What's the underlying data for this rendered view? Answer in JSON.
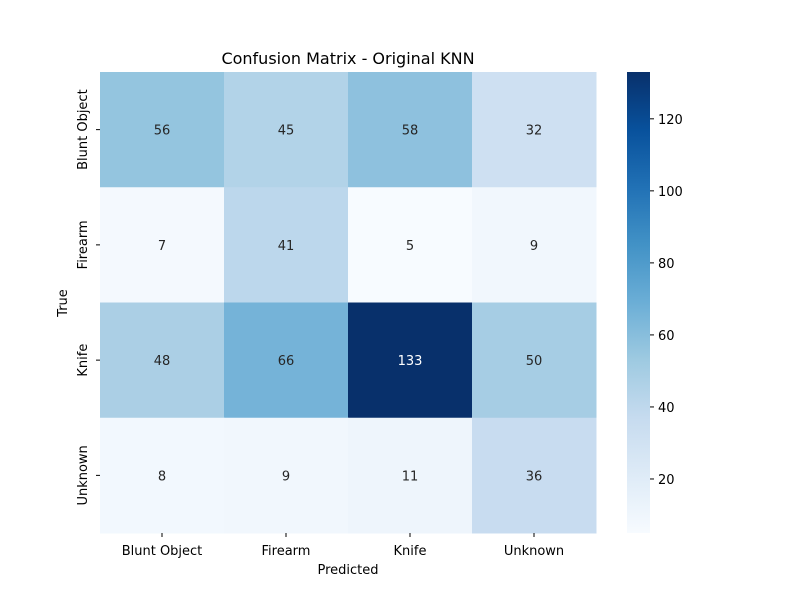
{
  "chart_data": {
    "type": "heatmap",
    "title": "Confusion Matrix - Original KNN",
    "xlabel": "Predicted",
    "ylabel": "True",
    "x_categories": [
      "Blunt Object",
      "Firearm",
      "Knife",
      "Unknown"
    ],
    "y_categories": [
      "Blunt Object",
      "Firearm",
      "Knife",
      "Unknown"
    ],
    "values": [
      [
        56,
        45,
        58,
        32
      ],
      [
        7,
        41,
        5,
        9
      ],
      [
        48,
        66,
        133,
        50
      ],
      [
        8,
        9,
        11,
        36
      ]
    ],
    "colorbar": {
      "min": 5,
      "max": 133,
      "ticks": [
        20,
        40,
        60,
        80,
        100,
        120
      ],
      "colormap": "Blues"
    },
    "annotations": true,
    "grid": false
  }
}
